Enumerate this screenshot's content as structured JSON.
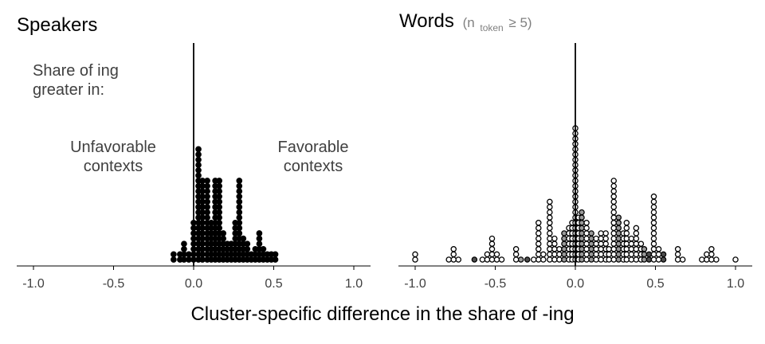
{
  "chart_data": [
    {
      "type": "scatter",
      "style": "dot-plot",
      "title": "Speakers",
      "annotation_title": [
        "Share of ing",
        "greater in:"
      ],
      "left_annotation": [
        "Unfavorable",
        "contexts"
      ],
      "right_annotation": [
        "Favorable",
        "contexts"
      ],
      "xlim": [
        -1.1,
        1.1
      ],
      "xticks": [
        "-1.0",
        "-0.5",
        "0.0",
        "0.5",
        "1.0"
      ],
      "xtick_values": [
        -1.0,
        -0.5,
        0.0,
        0.5,
        1.0
      ],
      "reference_line": 0.0,
      "dot_fill": "#000000",
      "dot_edge": "#000000",
      "stacks": [
        {
          "x": -0.125,
          "count": 2
        },
        {
          "x": -0.085,
          "count": 2
        },
        {
          "x": -0.06,
          "count": 4
        },
        {
          "x": -0.03,
          "count": 2
        },
        {
          "x": 0.0,
          "count": 8
        },
        {
          "x": 0.03,
          "count": 22
        },
        {
          "x": 0.055,
          "count": 16
        },
        {
          "x": 0.085,
          "count": 16
        },
        {
          "x": 0.11,
          "count": 8
        },
        {
          "x": 0.135,
          "count": 16
        },
        {
          "x": 0.16,
          "count": 16
        },
        {
          "x": 0.185,
          "count": 6
        },
        {
          "x": 0.21,
          "count": 4
        },
        {
          "x": 0.235,
          "count": 4
        },
        {
          "x": 0.26,
          "count": 8
        },
        {
          "x": 0.285,
          "count": 16
        },
        {
          "x": 0.31,
          "count": 5
        },
        {
          "x": 0.335,
          "count": 4
        },
        {
          "x": 0.36,
          "count": 2
        },
        {
          "x": 0.385,
          "count": 3
        },
        {
          "x": 0.41,
          "count": 6
        },
        {
          "x": 0.435,
          "count": 3
        },
        {
          "x": 0.46,
          "count": 2
        },
        {
          "x": 0.485,
          "count": 2
        },
        {
          "x": 0.51,
          "count": 2
        }
      ]
    },
    {
      "type": "scatter",
      "style": "dot-plot",
      "title": "Words",
      "subtitle": {
        "prefix": "(n",
        "subscript": "token",
        "suffix": " ≥ 5)"
      },
      "xlim": [
        -1.1,
        1.1
      ],
      "xticks": [
        "-1.0",
        "-0.5",
        "0.0",
        "0.5",
        "1.0"
      ],
      "xtick_values": [
        -1.0,
        -0.5,
        0.0,
        0.5,
        1.0
      ],
      "reference_line": 0.0,
      "dot_edge": "#000000",
      "fill_levels": {
        "light": "#ffffff",
        "mid": "#9a9a9a",
        "dark": "#4d4d4d"
      },
      "stacks": [
        {
          "x": -1.0,
          "count": 2,
          "fill": "light"
        },
        {
          "x": -0.79,
          "count": 1,
          "fill": "light"
        },
        {
          "x": -0.76,
          "count": 3,
          "fill": "light"
        },
        {
          "x": -0.73,
          "count": 1,
          "fill": "light"
        },
        {
          "x": -0.63,
          "count": 1,
          "fill": "dark"
        },
        {
          "x": -0.58,
          "count": 1,
          "fill": "light"
        },
        {
          "x": -0.55,
          "count": 2,
          "fill": "light"
        },
        {
          "x": -0.52,
          "count": 5,
          "fill": "light"
        },
        {
          "x": -0.49,
          "count": 2,
          "fill": "light"
        },
        {
          "x": -0.46,
          "count": 1,
          "fill": "light"
        },
        {
          "x": -0.37,
          "count": 3,
          "fill": "light"
        },
        {
          "x": -0.34,
          "count": 1,
          "fill": "mid"
        },
        {
          "x": -0.3,
          "count": 1,
          "fill": "dark"
        },
        {
          "x": -0.26,
          "count": 1,
          "fill": "light"
        },
        {
          "x": -0.23,
          "count": 8,
          "fill": "light"
        },
        {
          "x": -0.2,
          "count": 2,
          "fill": "light"
        },
        {
          "x": -0.16,
          "count": 12,
          "fill": "light"
        },
        {
          "x": -0.13,
          "count": 5,
          "fill": "light"
        },
        {
          "x": -0.1,
          "count": 3,
          "fill": "light"
        },
        {
          "x": -0.07,
          "count": 6,
          "fill": "mid"
        },
        {
          "x": -0.04,
          "count": 7,
          "fill": "light"
        },
        {
          "x": -0.02,
          "count": 8,
          "fill": "light"
        },
        {
          "x": 0.0,
          "count": 26,
          "fill": "light"
        },
        {
          "x": 0.02,
          "count": 9,
          "fill": "light"
        },
        {
          "x": 0.04,
          "count": 10,
          "fill": "mid"
        },
        {
          "x": 0.07,
          "count": 8,
          "fill": "light"
        },
        {
          "x": 0.1,
          "count": 6,
          "fill": "mid"
        },
        {
          "x": 0.13,
          "count": 5,
          "fill": "light"
        },
        {
          "x": 0.16,
          "count": 6,
          "fill": "light"
        },
        {
          "x": 0.19,
          "count": 6,
          "fill": "light"
        },
        {
          "x": 0.21,
          "count": 3,
          "fill": "light"
        },
        {
          "x": 0.24,
          "count": 16,
          "fill": "light"
        },
        {
          "x": 0.27,
          "count": 9,
          "fill": "mid"
        },
        {
          "x": 0.3,
          "count": 6,
          "fill": "light"
        },
        {
          "x": 0.32,
          "count": 8,
          "fill": "light"
        },
        {
          "x": 0.35,
          "count": 5,
          "fill": "light"
        },
        {
          "x": 0.38,
          "count": 7,
          "fill": "light"
        },
        {
          "x": 0.41,
          "count": 4,
          "fill": "light"
        },
        {
          "x": 0.43,
          "count": 3,
          "fill": "mid"
        },
        {
          "x": 0.46,
          "count": 2,
          "fill": "dark"
        },
        {
          "x": 0.49,
          "count": 13,
          "fill": "light"
        },
        {
          "x": 0.52,
          "count": 3,
          "fill": "light"
        },
        {
          "x": 0.55,
          "count": 2,
          "fill": "dark"
        },
        {
          "x": 0.64,
          "count": 3,
          "fill": "light"
        },
        {
          "x": 0.67,
          "count": 1,
          "fill": "light"
        },
        {
          "x": 0.79,
          "count": 1,
          "fill": "light"
        },
        {
          "x": 0.82,
          "count": 2,
          "fill": "light"
        },
        {
          "x": 0.85,
          "count": 3,
          "fill": "light"
        },
        {
          "x": 0.88,
          "count": 1,
          "fill": "light"
        },
        {
          "x": 1.0,
          "count": 1,
          "fill": "light"
        }
      ]
    }
  ],
  "xlabel": "Cluster-specific difference in the share of -ing"
}
